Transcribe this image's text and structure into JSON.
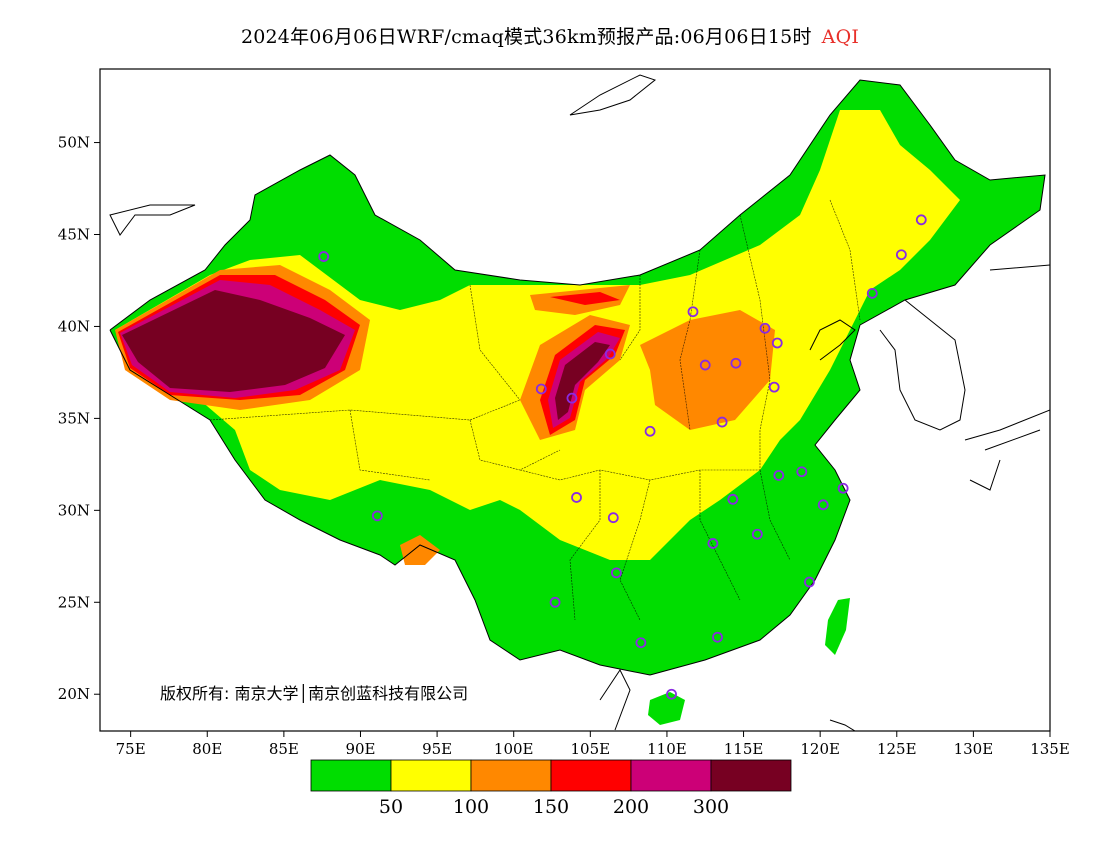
{
  "header": {
    "title": "2024年06月06日WRF/cmaq模式36km预报产品:06月06日15时",
    "product": "AQI"
  },
  "map": {
    "lon_range": [
      73,
      135
    ],
    "lat_range": [
      18,
      54
    ],
    "lat_ticks": [
      {
        "value": 20,
        "label": "20N"
      },
      {
        "value": 25,
        "label": "25N"
      },
      {
        "value": 30,
        "label": "30N"
      },
      {
        "value": 35,
        "label": "35N"
      },
      {
        "value": 40,
        "label": "40N"
      },
      {
        "value": 45,
        "label": "45N"
      },
      {
        "value": 50,
        "label": "50N"
      }
    ],
    "lon_ticks": [
      {
        "value": 75,
        "label": "75E"
      },
      {
        "value": 80,
        "label": "80E"
      },
      {
        "value": 85,
        "label": "85E"
      },
      {
        "value": 90,
        "label": "90E"
      },
      {
        "value": 95,
        "label": "95E"
      },
      {
        "value": 100,
        "label": "100E"
      },
      {
        "value": 105,
        "label": "105E"
      },
      {
        "value": 110,
        "label": "110E"
      },
      {
        "value": 115,
        "label": "115E"
      },
      {
        "value": 120,
        "label": "120E"
      },
      {
        "value": 125,
        "label": "125E"
      },
      {
        "value": 130,
        "label": "130E"
      },
      {
        "value": 135,
        "label": "135E"
      }
    ],
    "copyright": "版权所有: 南京大学│南京创蓝科技有限公司",
    "stations": [
      [
        87.6,
        43.8
      ],
      [
        126.6,
        45.8
      ],
      [
        125.3,
        43.9
      ],
      [
        123.4,
        41.8
      ],
      [
        111.7,
        40.8
      ],
      [
        116.4,
        39.9
      ],
      [
        117.2,
        39.1
      ],
      [
        106.3,
        38.5
      ],
      [
        112.5,
        37.9
      ],
      [
        114.5,
        38.0
      ],
      [
        103.8,
        36.1
      ],
      [
        101.8,
        36.6
      ],
      [
        117.0,
        36.7
      ],
      [
        113.6,
        34.8
      ],
      [
        108.9,
        34.3
      ],
      [
        117.3,
        31.9
      ],
      [
        118.8,
        32.1
      ],
      [
        121.5,
        31.2
      ],
      [
        120.2,
        30.3
      ],
      [
        114.3,
        30.6
      ],
      [
        104.1,
        30.7
      ],
      [
        106.5,
        29.6
      ],
      [
        113.0,
        28.2
      ],
      [
        115.9,
        28.7
      ],
      [
        106.7,
        26.6
      ],
      [
        119.3,
        26.1
      ],
      [
        102.7,
        25.0
      ],
      [
        108.3,
        22.8
      ],
      [
        113.3,
        23.1
      ],
      [
        110.3,
        20.0
      ],
      [
        91.1,
        29.7
      ]
    ]
  },
  "legend": {
    "bins": [
      {
        "color": "#00dd00"
      },
      {
        "color": "#ffff00"
      },
      {
        "color": "#ff8800"
      },
      {
        "color": "#ff0000"
      },
      {
        "color": "#cc0077"
      },
      {
        "color": "#770022"
      }
    ],
    "labels": [
      "50",
      "100",
      "150",
      "200",
      "300"
    ]
  }
}
